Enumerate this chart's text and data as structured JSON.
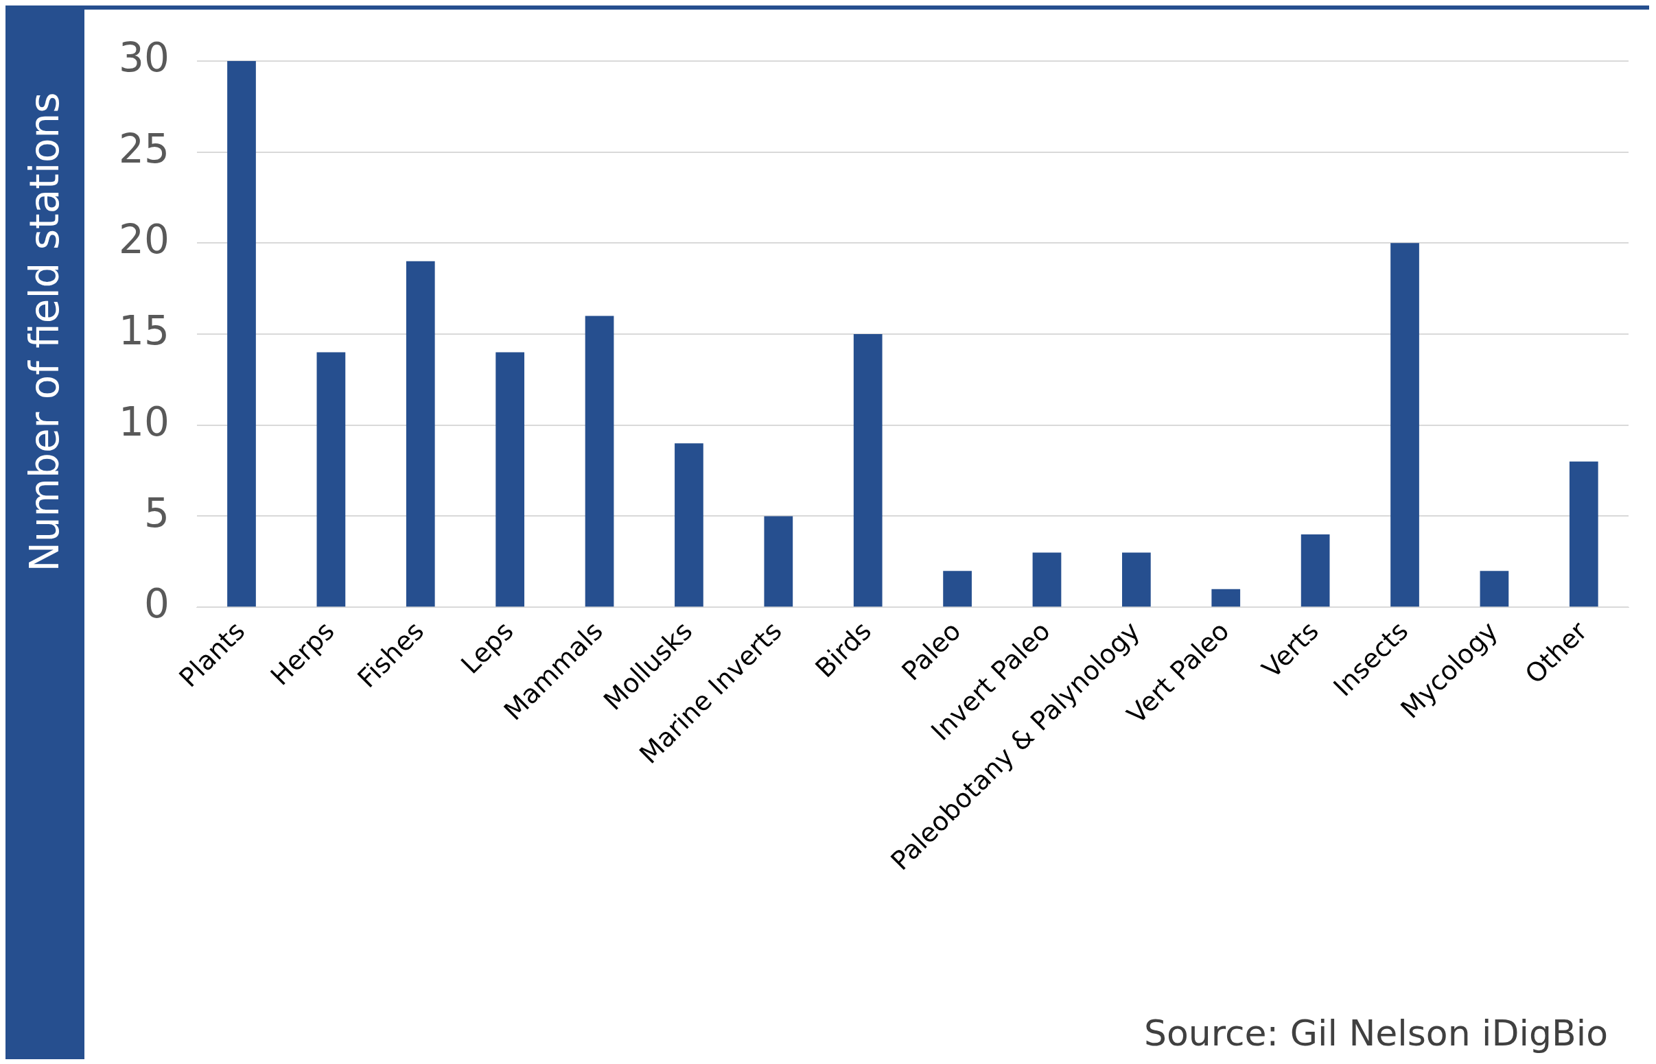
{
  "chart_data": {
    "type": "bar",
    "ylabel": "Number of field stations",
    "categories": [
      "Plants",
      "Herps",
      "Fishes",
      "Leps",
      "Mammals",
      "Mollusks",
      "Marine Inverts",
      "Birds",
      "Paleo",
      "Invert Paleo",
      "Paleobotany & Palynology",
      "Vert Paleo",
      "Verts",
      "Insects",
      "Mycology",
      "Other"
    ],
    "values": [
      30,
      14,
      19,
      14,
      16,
      9,
      5,
      15,
      2,
      3,
      3,
      1,
      4,
      20,
      2,
      8
    ],
    "color": "#264f8f",
    "ylim": [
      0,
      30
    ],
    "yticks": [
      0,
      5,
      10,
      15,
      20,
      25,
      30
    ],
    "grid": "y",
    "legend": false,
    "annotations": [
      "Source: Gil Nelson iDigBio"
    ]
  }
}
